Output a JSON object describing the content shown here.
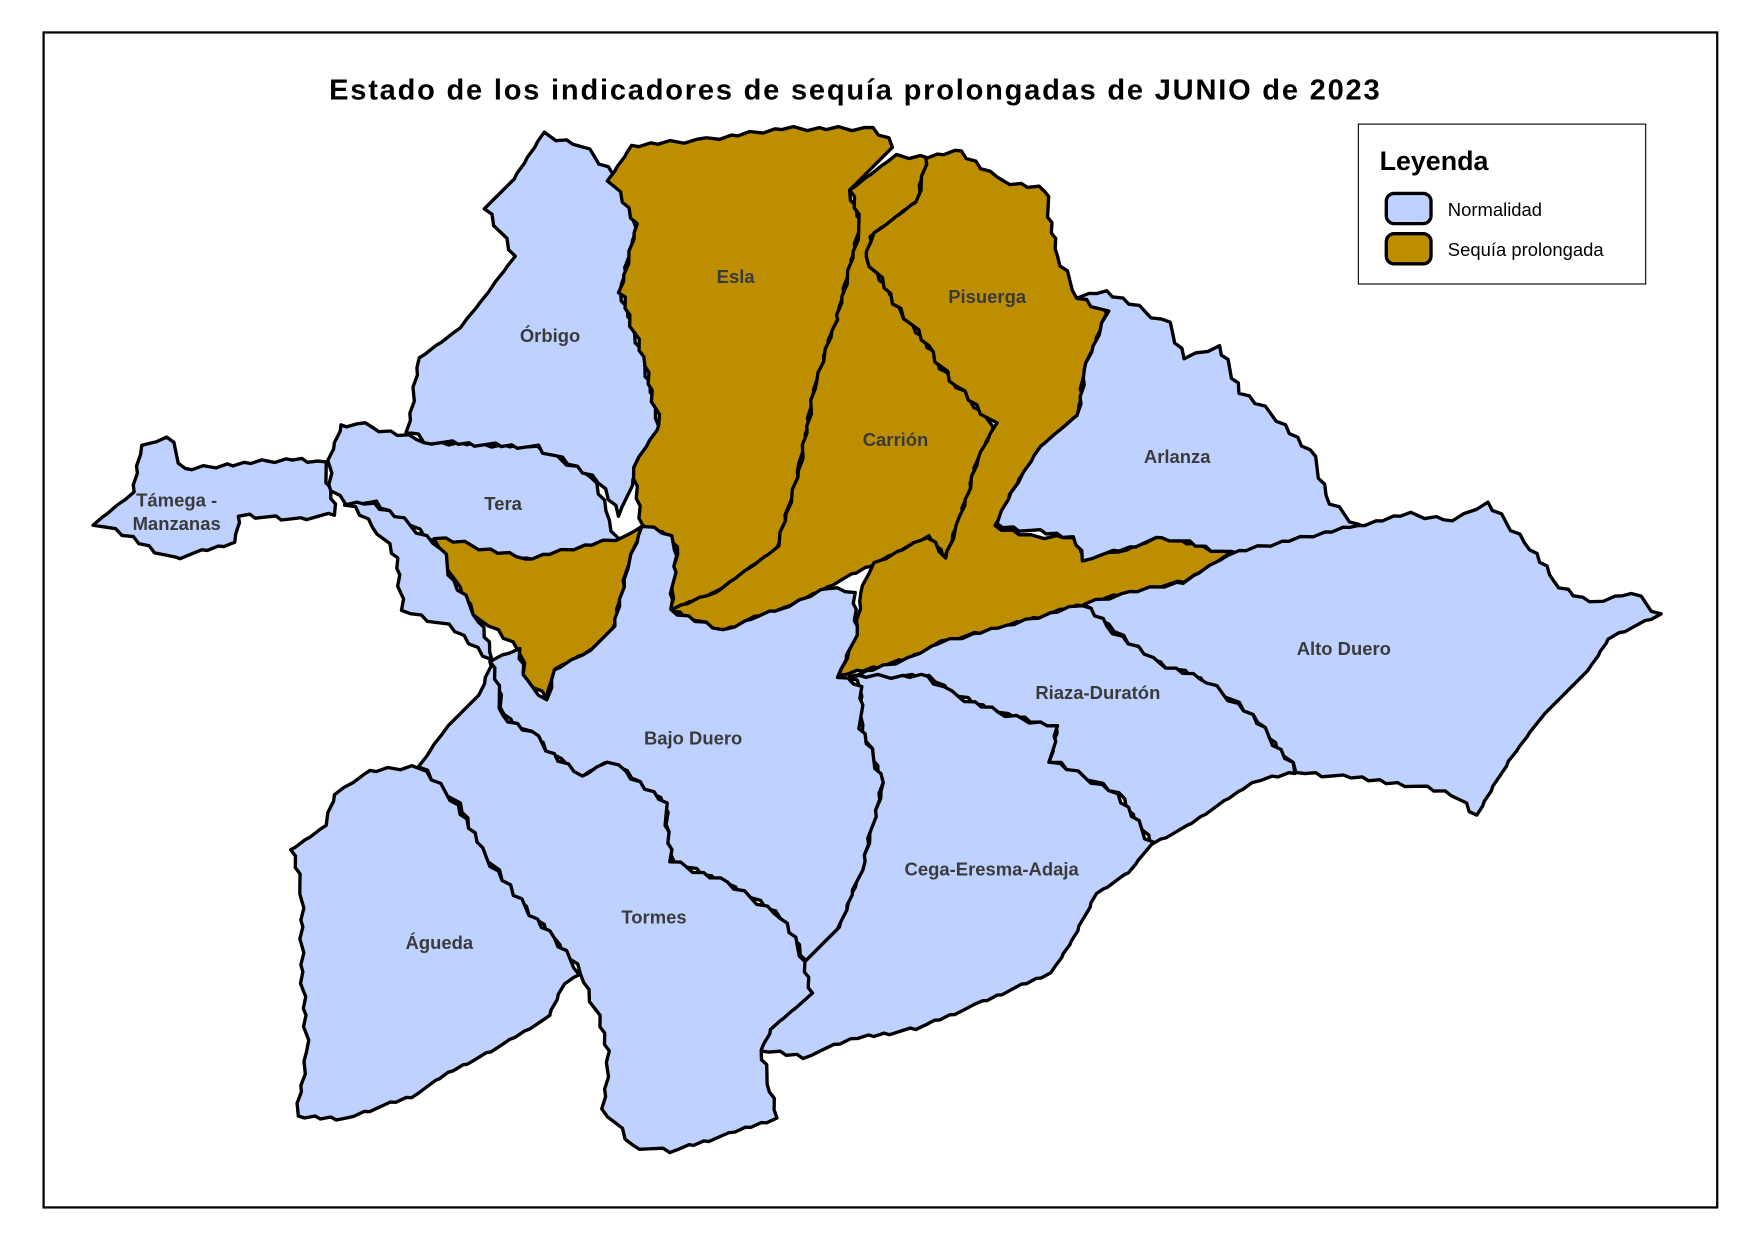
{
  "title": "Estado de los indicadores de sequía prolongadas de JUNIO de 2023",
  "legend": {
    "title": "Leyenda",
    "items": [
      {
        "label": "Normalidad",
        "color": "#bfd2ff"
      },
      {
        "label": "Sequía prolongada",
        "color": "#bd8f00"
      }
    ]
  },
  "regions": [
    {
      "name": "Támega - Manzanas",
      "line1": "Támega -",
      "line2": "Manzanas",
      "status": "Normalidad"
    },
    {
      "name": "Tera",
      "status": "Normalidad"
    },
    {
      "name": "Órbigo",
      "status": "Normalidad"
    },
    {
      "name": "Esla",
      "status": "Sequía prolongada"
    },
    {
      "name": "Carrión",
      "status": "Sequía prolongada"
    },
    {
      "name": "Pisuerga",
      "status": "Sequía prolongada"
    },
    {
      "name": "Arlanza",
      "status": "Normalidad"
    },
    {
      "name": "Alto Duero",
      "status": "Normalidad"
    },
    {
      "name": "Riaza-Duratón",
      "status": "Normalidad"
    },
    {
      "name": "Cega-Eresma-Adaja",
      "status": "Normalidad"
    },
    {
      "name": "Bajo Duero",
      "status": "Normalidad"
    },
    {
      "name": "Tormes",
      "status": "Normalidad"
    },
    {
      "name": "Águeda",
      "status": "Normalidad"
    }
  ]
}
